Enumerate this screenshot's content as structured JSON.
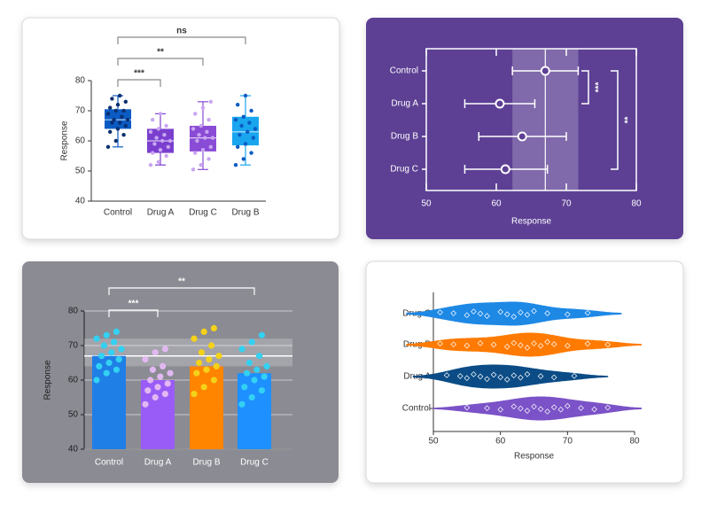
{
  "chart_data": [
    {
      "type": "box",
      "ylabel": "Response",
      "categories": [
        "Control",
        "Drug A",
        "Drug C",
        "Drug B"
      ],
      "colors": [
        "#0b5bc4",
        "#7a3fcf",
        "#8a4bd6",
        "#19a6ef"
      ],
      "point_colors": [
        "#0a2f70",
        "#c9a6f0",
        "#c9a6f0",
        "#0b5bc4"
      ],
      "min": [
        58,
        52,
        50.5,
        52
      ],
      "q1": [
        64,
        56,
        56.5,
        58.5
      ],
      "median": [
        67,
        60,
        61,
        63
      ],
      "q3": [
        70.5,
        64,
        65,
        68
      ],
      "max": [
        75,
        69,
        73,
        75
      ],
      "points": [
        [
          58,
          60,
          62,
          63,
          64,
          65,
          66,
          66,
          67,
          67,
          68,
          69,
          70,
          70,
          71,
          72,
          73,
          74,
          75
        ],
        [
          52,
          53,
          55,
          56,
          57,
          58,
          59,
          60,
          60,
          61,
          62,
          63,
          64,
          65,
          67,
          69
        ],
        [
          50.5,
          52,
          54,
          56,
          57,
          58,
          60,
          61,
          61,
          62,
          63,
          64,
          65,
          67,
          69,
          71,
          73
        ],
        [
          52,
          54,
          56,
          58,
          59,
          61,
          62,
          63,
          64,
          65,
          66,
          67,
          68,
          70,
          72,
          75
        ]
      ],
      "ylim": [
        40,
        80
      ],
      "yticks": [
        40,
        50,
        60,
        70,
        80
      ],
      "annotations": [
        "ns",
        "**",
        "***"
      ]
    },
    {
      "type": "forest",
      "xlabel": "Response",
      "categories": [
        "Control",
        "Drug A",
        "Drug B",
        "Drug C"
      ],
      "values": [
        67,
        60.5,
        63.7,
        61.3
      ],
      "lower": [
        62.3,
        55.5,
        57.5,
        55.5
      ],
      "upper": [
        71.7,
        65.5,
        70,
        67.3
      ],
      "reference_band": [
        62.3,
        71.7
      ],
      "reference_line": 67,
      "xlim": [
        50,
        80
      ],
      "xticks": [
        50,
        60,
        70,
        80
      ],
      "annotations": [
        "***",
        "**"
      ]
    },
    {
      "type": "bar",
      "ylabel": "Response",
      "categories": [
        "Control",
        "Drug A",
        "Drug B",
        "Drug C"
      ],
      "values": [
        67,
        60,
        64,
        62
      ],
      "colors": [
        "#1f7fe6",
        "#9a5cf6",
        "#ff8400",
        "#1e90ff"
      ],
      "point_colors": [
        "#33d1f2",
        "#e2b8f2",
        "#f4d21a",
        "#33d1f2"
      ],
      "points": [
        [
          60,
          62,
          63,
          64,
          65,
          66,
          67,
          68,
          69,
          70,
          71,
          72,
          73,
          74
        ],
        [
          53,
          55,
          56,
          57,
          58,
          59,
          60,
          61,
          62,
          63,
          64,
          66,
          68,
          69
        ],
        [
          56,
          58,
          60,
          62,
          63,
          64,
          65,
          66,
          67,
          68,
          70,
          72,
          74,
          75
        ],
        [
          53,
          55,
          57,
          58,
          60,
          61,
          62,
          63,
          64,
          65,
          67,
          69,
          71,
          73
        ]
      ],
      "reference_band": [
        64,
        72
      ],
      "reference_line": 67,
      "ylim": [
        40,
        80
      ],
      "yticks": [
        40,
        50,
        60,
        70,
        80
      ],
      "grid": true,
      "annotations": [
        "**",
        "***"
      ]
    },
    {
      "type": "violin",
      "xlabel": "Response",
      "categories": [
        "Control",
        "Drug A",
        "Drug B",
        "Drug C"
      ],
      "colors": [
        "#7b52c7",
        "#0b4c86",
        "#ff7a00",
        "#1e88e5"
      ],
      "points": [
        [
          55,
          58,
          60,
          62,
          63,
          64,
          65,
          66,
          67,
          68,
          69,
          70,
          72,
          74,
          76
        ],
        [
          52,
          54,
          55,
          56,
          57,
          58,
          59,
          60,
          61,
          62,
          63,
          64,
          66,
          68,
          71
        ],
        [
          51,
          53,
          55,
          57,
          59,
          61,
          62,
          63,
          64,
          65,
          66,
          67,
          68,
          70,
          73,
          76
        ],
        [
          51,
          53,
          55,
          56,
          57,
          58,
          60,
          61,
          62,
          63,
          64,
          65,
          67,
          70,
          73
        ]
      ],
      "xlim": [
        50,
        80
      ],
      "xticks": [
        50,
        60,
        70,
        80
      ]
    }
  ]
}
